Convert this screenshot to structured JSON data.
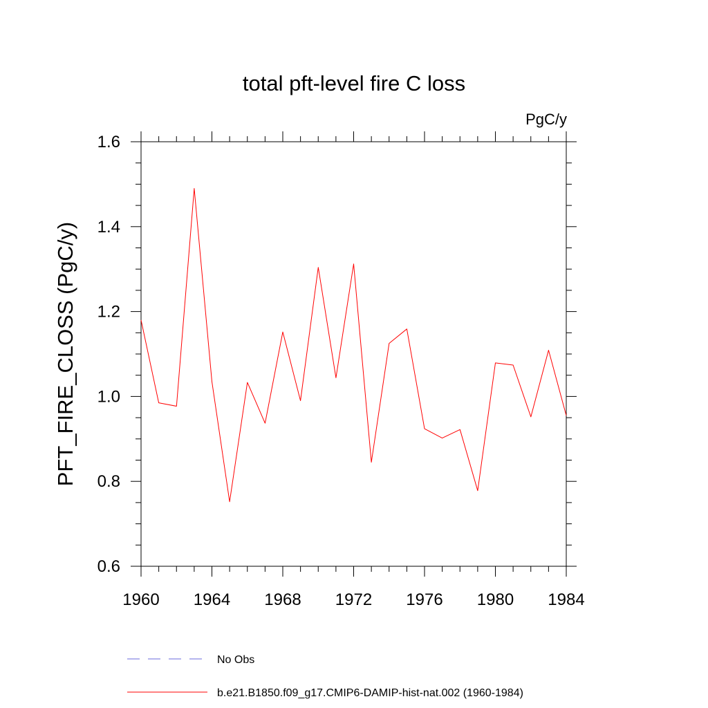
{
  "chart_data": {
    "type": "line",
    "title": "total pft-level fire C loss",
    "units_label": "PgC/y",
    "ylabel": "PFT_FIRE_CLOSS  (PgC/y)",
    "xlabel": "",
    "xlim": [
      1960,
      1984
    ],
    "ylim": [
      0.6,
      1.6
    ],
    "x_ticks": [
      1960,
      1964,
      1968,
      1972,
      1976,
      1980,
      1984
    ],
    "y_ticks": [
      "0.6",
      "0.8",
      "1.0",
      "1.2",
      "1.4",
      "1.6"
    ],
    "grid": false,
    "legend_position": "bottom",
    "series": [
      {
        "name": "b.e21.B1850.f09_g17.CMIP6-DAMIP-hist-nat.002 (1960-1984)",
        "color": "#ff0000",
        "style": "solid",
        "x": [
          1960,
          1961,
          1962,
          1963,
          1964,
          1965,
          1966,
          1967,
          1968,
          1969,
          1970,
          1971,
          1972,
          1973,
          1974,
          1975,
          1976,
          1977,
          1978,
          1979,
          1980,
          1981,
          1982,
          1983,
          1984
        ],
        "y": [
          1.18,
          0.985,
          0.977,
          1.49,
          1.035,
          0.752,
          1.033,
          0.937,
          1.152,
          0.99,
          1.304,
          1.044,
          1.312,
          0.845,
          1.125,
          1.159,
          0.924,
          0.902,
          0.922,
          0.778,
          1.079,
          1.074,
          0.952,
          1.109,
          0.955
        ]
      }
    ],
    "legend": [
      {
        "label": "No Obs",
        "color": "#6a6adc",
        "style": "dashed"
      },
      {
        "label": "b.e21.B1850.f09_g17.CMIP6-DAMIP-hist-nat.002 (1960-1984)",
        "color": "#ff0000",
        "style": "solid"
      }
    ]
  }
}
